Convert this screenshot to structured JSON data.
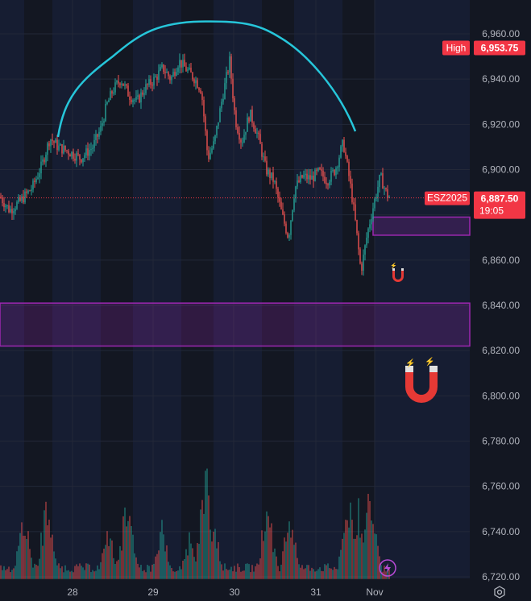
{
  "chart_data": {
    "type": "candlestick",
    "symbol": "ESZ2025",
    "y_axis": {
      "ticks": [
        "6,960.00",
        "6,940.00",
        "6,920.00",
        "6,900.00",
        "6,860.00",
        "6,840.00",
        "6,820.00",
        "6,800.00",
        "6,780.00",
        "6,760.00",
        "6,740.00",
        "6,720.00"
      ],
      "tick_values": [
        6960,
        6940,
        6920,
        6900,
        6860,
        6840,
        6820,
        6800,
        6780,
        6760,
        6740,
        6720
      ],
      "range": [
        6716,
        6970
      ]
    },
    "x_axis": {
      "labels": [
        "28",
        "29",
        "30",
        "31",
        "Nov"
      ]
    },
    "high_tag": {
      "label": "High",
      "value": "6,953.75",
      "price": 6953.75
    },
    "last_price_tag": {
      "symbol": "ESZ2025",
      "value": "6,887.50",
      "countdown": "19:05",
      "price": 6887.5
    },
    "zones": [
      {
        "from": 6822,
        "to": 6841,
        "color": "#9c27b0"
      },
      {
        "from": 6871,
        "to": 6879,
        "color": "#9c27b0"
      }
    ],
    "price_path": [
      [
        0,
        6888
      ],
      [
        12,
        6882
      ],
      [
        25,
        6886
      ],
      [
        40,
        6892
      ],
      [
        52,
        6902
      ],
      [
        62,
        6914
      ],
      [
        72,
        6910
      ],
      [
        85,
        6908
      ],
      [
        100,
        6905
      ],
      [
        115,
        6910
      ],
      [
        125,
        6918
      ],
      [
        132,
        6928
      ],
      [
        140,
        6935
      ],
      [
        150,
        6940
      ],
      [
        160,
        6933
      ],
      [
        170,
        6930
      ],
      [
        180,
        6936
      ],
      [
        192,
        6940
      ],
      [
        202,
        6945
      ],
      [
        212,
        6940
      ],
      [
        222,
        6948
      ],
      [
        232,
        6944
      ],
      [
        242,
        6940
      ],
      [
        250,
        6935
      ],
      [
        258,
        6905
      ],
      [
        266,
        6912
      ],
      [
        275,
        6930
      ],
      [
        285,
        6948
      ],
      [
        292,
        6922
      ],
      [
        300,
        6912
      ],
      [
        310,
        6925
      ],
      [
        320,
        6915
      ],
      [
        330,
        6900
      ],
      [
        340,
        6895
      ],
      [
        350,
        6880
      ],
      [
        358,
        6870
      ],
      [
        366,
        6892
      ],
      [
        376,
        6897
      ],
      [
        386,
        6896
      ],
      [
        396,
        6899
      ],
      [
        406,
        6895
      ],
      [
        416,
        6900
      ],
      [
        426,
        6912
      ],
      [
        434,
        6895
      ],
      [
        440,
        6880
      ],
      [
        448,
        6855
      ],
      [
        456,
        6872
      ],
      [
        464,
        6885
      ],
      [
        472,
        6897
      ],
      [
        480,
        6889
      ],
      [
        484,
        6887.5
      ]
    ],
    "volume_spikes": [
      [
        30,
        6752
      ],
      [
        58,
        6760
      ],
      [
        135,
        6745
      ],
      [
        158,
        6762
      ],
      [
        200,
        6748
      ],
      [
        235,
        6740
      ],
      [
        255,
        6778
      ],
      [
        265,
        6748
      ],
      [
        332,
        6763
      ],
      [
        360,
        6755
      ],
      [
        432,
        6762
      ],
      [
        445,
        6755
      ],
      [
        460,
        6772
      ]
    ],
    "arc": {
      "color": "#26c6da"
    },
    "colors": {
      "up": "#26a69a",
      "down": "#ef5350",
      "background": "#131722",
      "grid": "#1f2333",
      "tag_red": "#f23645"
    }
  }
}
